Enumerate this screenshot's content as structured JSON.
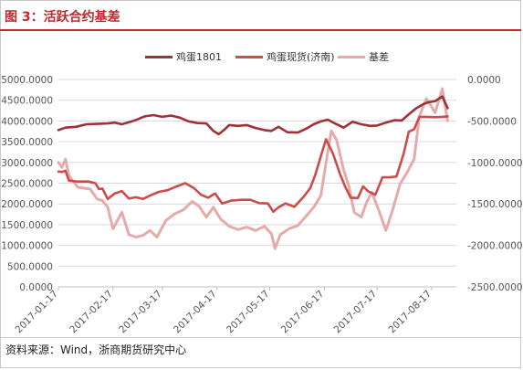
{
  "figure": {
    "title": "图 3：活跃合约基差",
    "source": "资料来源：Wind，浙商期货研究中心"
  },
  "colors": {
    "accent": "#c0282d",
    "futures": "#9e3236",
    "spot": "#cc4c4c",
    "basis": "#e6aaaa",
    "grid": "#d9d9d9",
    "axis_text": "#555555"
  },
  "chart_data": {
    "type": "line",
    "legend_position": "top",
    "grid": true,
    "x_ticks": [
      "2017-01-17",
      "2017-02-17",
      "2017-03-17",
      "2017-04-17",
      "2017-05-17",
      "2017-06-17",
      "2017-07-17",
      "2017-08-17"
    ],
    "y_left": {
      "ylim": [
        0,
        5000
      ],
      "ticks": [
        "0.0000",
        "500.0000",
        "1000.0000",
        "1500.0000",
        "2000.0000",
        "2500.0000",
        "3000.0000",
        "3500.0000",
        "4000.0000",
        "4500.0000",
        "5000.0000"
      ]
    },
    "y_right": {
      "ylim": [
        -2500,
        0
      ],
      "ticks": [
        "0.0000",
        "-500.0000",
        "-1000.0000",
        "-1500.0000",
        "-2000.0000",
        "-2500.0000"
      ]
    },
    "series": [
      {
        "name": "鸡蛋1801",
        "axis": "left",
        "values": [
          [
            "2017-01-17",
            3780
          ],
          [
            "2017-01-21",
            3840
          ],
          [
            "2017-01-27",
            3860
          ],
          [
            "2017-02-02",
            3920
          ],
          [
            "2017-02-08",
            3930
          ],
          [
            "2017-02-14",
            3940
          ],
          [
            "2017-02-18",
            3960
          ],
          [
            "2017-02-22",
            3920
          ],
          [
            "2017-02-27",
            3980
          ],
          [
            "2017-03-03",
            4040
          ],
          [
            "2017-03-07",
            4110
          ],
          [
            "2017-03-12",
            4140
          ],
          [
            "2017-03-17",
            4100
          ],
          [
            "2017-03-22",
            4130
          ],
          [
            "2017-03-27",
            4080
          ],
          [
            "2017-04-01",
            3990
          ],
          [
            "2017-04-06",
            3950
          ],
          [
            "2017-04-11",
            3940
          ],
          [
            "2017-04-15",
            3760
          ],
          [
            "2017-04-18",
            3680
          ],
          [
            "2017-04-21",
            3780
          ],
          [
            "2017-04-24",
            3900
          ],
          [
            "2017-04-29",
            3880
          ],
          [
            "2017-05-04",
            3900
          ],
          [
            "2017-05-09",
            3830
          ],
          [
            "2017-05-14",
            3780
          ],
          [
            "2017-05-18",
            3760
          ],
          [
            "2017-05-22",
            3860
          ],
          [
            "2017-05-27",
            3730
          ],
          [
            "2017-06-02",
            3720
          ],
          [
            "2017-06-07",
            3820
          ],
          [
            "2017-06-11",
            3920
          ],
          [
            "2017-06-15",
            3990
          ],
          [
            "2017-06-19",
            4030
          ],
          [
            "2017-06-23",
            3940
          ],
          [
            "2017-06-28",
            3840
          ],
          [
            "2017-07-03",
            3980
          ],
          [
            "2017-07-08",
            3920
          ],
          [
            "2017-07-13",
            3880
          ],
          [
            "2017-07-17",
            3890
          ],
          [
            "2017-07-22",
            3960
          ],
          [
            "2017-07-27",
            4020
          ],
          [
            "2017-07-31",
            4010
          ],
          [
            "2017-08-04",
            4160
          ],
          [
            "2017-08-08",
            4300
          ],
          [
            "2017-08-12",
            4400
          ],
          [
            "2017-08-15",
            4450
          ],
          [
            "2017-08-19",
            4480
          ],
          [
            "2017-08-23",
            4590
          ],
          [
            "2017-08-26",
            4310
          ]
        ]
      },
      {
        "name": "鸡蛋现货(济南)",
        "axis": "left",
        "values": [
          [
            "2017-01-17",
            2780
          ],
          [
            "2017-01-19",
            2770
          ],
          [
            "2017-01-21",
            2800
          ],
          [
            "2017-01-23",
            2560
          ],
          [
            "2017-01-28",
            2540
          ],
          [
            "2017-02-03",
            2540
          ],
          [
            "2017-02-07",
            2500
          ],
          [
            "2017-02-09",
            2360
          ],
          [
            "2017-02-11",
            2370
          ],
          [
            "2017-02-14",
            2120
          ],
          [
            "2017-02-18",
            2250
          ],
          [
            "2017-02-22",
            2310
          ],
          [
            "2017-02-26",
            2130
          ],
          [
            "2017-03-02",
            2160
          ],
          [
            "2017-03-06",
            2120
          ],
          [
            "2017-03-10",
            2200
          ],
          [
            "2017-03-15",
            2290
          ],
          [
            "2017-03-20",
            2330
          ],
          [
            "2017-03-25",
            2420
          ],
          [
            "2017-03-30",
            2500
          ],
          [
            "2017-04-04",
            2380
          ],
          [
            "2017-04-08",
            2220
          ],
          [
            "2017-04-12",
            2150
          ],
          [
            "2017-04-16",
            2250
          ],
          [
            "2017-04-20",
            2010
          ],
          [
            "2017-04-25",
            2080
          ],
          [
            "2017-05-01",
            2100
          ],
          [
            "2017-05-06",
            2100
          ],
          [
            "2017-05-11",
            2020
          ],
          [
            "2017-05-16",
            2010
          ],
          [
            "2017-05-19",
            1810
          ],
          [
            "2017-05-22",
            1920
          ],
          [
            "2017-05-26",
            2010
          ],
          [
            "2017-05-31",
            1930
          ],
          [
            "2017-06-05",
            2160
          ],
          [
            "2017-06-09",
            2380
          ],
          [
            "2017-06-12",
            2720
          ],
          [
            "2017-06-15",
            3150
          ],
          [
            "2017-06-18",
            3560
          ],
          [
            "2017-06-22",
            3200
          ],
          [
            "2017-06-26",
            2710
          ],
          [
            "2017-06-29",
            2400
          ],
          [
            "2017-07-02",
            2150
          ],
          [
            "2017-07-06",
            2140
          ],
          [
            "2017-07-09",
            2420
          ],
          [
            "2017-07-12",
            2300
          ],
          [
            "2017-07-16",
            2220
          ],
          [
            "2017-07-20",
            2640
          ],
          [
            "2017-07-24",
            2640
          ],
          [
            "2017-07-28",
            2660
          ],
          [
            "2017-08-01",
            3200
          ],
          [
            "2017-08-04",
            3740
          ],
          [
            "2017-08-07",
            3800
          ],
          [
            "2017-08-10",
            4100
          ],
          [
            "2017-08-14",
            4100
          ],
          [
            "2017-08-19",
            4090
          ],
          [
            "2017-08-23",
            4100
          ],
          [
            "2017-08-26",
            4110
          ]
        ]
      },
      {
        "name": "基差",
        "axis": "right",
        "values": [
          [
            "2017-01-17",
            -1000
          ],
          [
            "2017-01-19",
            -1060
          ],
          [
            "2017-01-21",
            -960
          ],
          [
            "2017-01-23",
            -1160
          ],
          [
            "2017-01-28",
            -1300
          ],
          [
            "2017-02-04",
            -1320
          ],
          [
            "2017-02-08",
            -1440
          ],
          [
            "2017-02-11",
            -1460
          ],
          [
            "2017-02-14",
            -1540
          ],
          [
            "2017-02-17",
            -1800
          ],
          [
            "2017-02-22",
            -1600
          ],
          [
            "2017-02-26",
            -1870
          ],
          [
            "2017-03-02",
            -1900
          ],
          [
            "2017-03-06",
            -1880
          ],
          [
            "2017-03-10",
            -1820
          ],
          [
            "2017-03-14",
            -1900
          ],
          [
            "2017-03-19",
            -1700
          ],
          [
            "2017-03-24",
            -1620
          ],
          [
            "2017-03-29",
            -1570
          ],
          [
            "2017-04-03",
            -1470
          ],
          [
            "2017-04-07",
            -1530
          ],
          [
            "2017-04-11",
            -1660
          ],
          [
            "2017-04-15",
            -1540
          ],
          [
            "2017-04-19",
            -1680
          ],
          [
            "2017-04-24",
            -1770
          ],
          [
            "2017-04-29",
            -1810
          ],
          [
            "2017-05-04",
            -1780
          ],
          [
            "2017-05-09",
            -1820
          ],
          [
            "2017-05-14",
            -1770
          ],
          [
            "2017-05-18",
            -1860
          ],
          [
            "2017-05-20",
            -2040
          ],
          [
            "2017-05-23",
            -1870
          ],
          [
            "2017-05-28",
            -1800
          ],
          [
            "2017-06-02",
            -1760
          ],
          [
            "2017-06-07",
            -1640
          ],
          [
            "2017-06-11",
            -1540
          ],
          [
            "2017-06-15",
            -1400
          ],
          [
            "2017-06-18",
            -1000
          ],
          [
            "2017-06-21",
            -620
          ],
          [
            "2017-06-24",
            -730
          ],
          [
            "2017-06-28",
            -1090
          ],
          [
            "2017-07-01",
            -1290
          ],
          [
            "2017-07-04",
            -1600
          ],
          [
            "2017-07-08",
            -1660
          ],
          [
            "2017-07-11",
            -1480
          ],
          [
            "2017-07-14",
            -1360
          ],
          [
            "2017-07-18",
            -1580
          ],
          [
            "2017-07-22",
            -1820
          ],
          [
            "2017-07-26",
            -1560
          ],
          [
            "2017-07-30",
            -1260
          ],
          [
            "2017-08-03",
            -1120
          ],
          [
            "2017-08-07",
            -960
          ],
          [
            "2017-08-10",
            -440
          ],
          [
            "2017-08-14",
            -230
          ],
          [
            "2017-08-19",
            -400
          ],
          [
            "2017-08-23",
            -110
          ],
          [
            "2017-08-26",
            -500
          ]
        ]
      }
    ]
  }
}
